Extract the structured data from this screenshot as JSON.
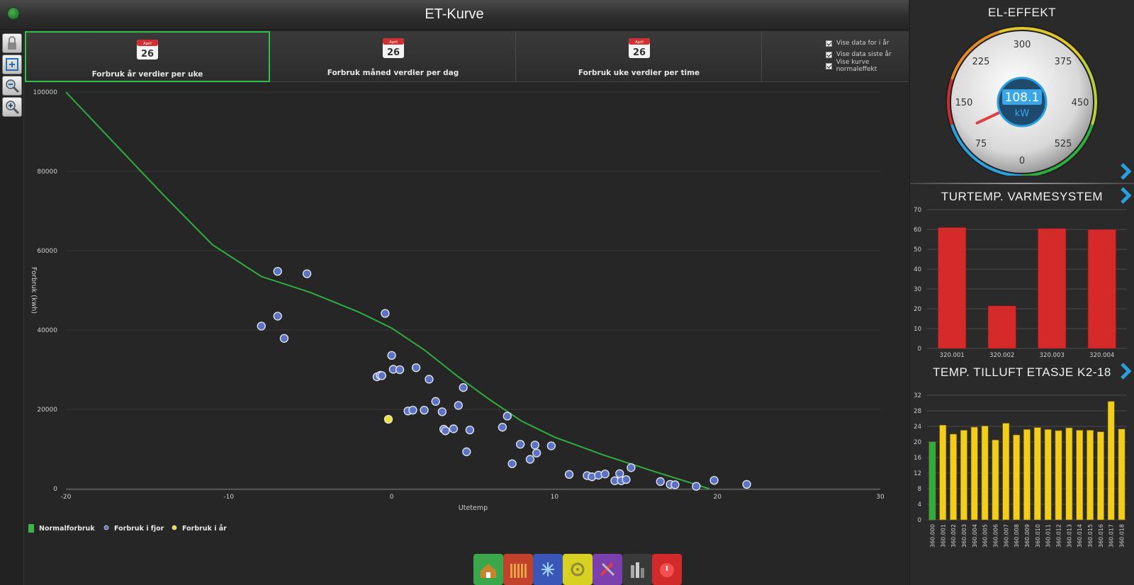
{
  "header": {
    "title": "ET-Kurve"
  },
  "toolbar": {
    "icons": [
      "lock-icon",
      "fit-screen-icon",
      "zoom-out-icon",
      "zoom-in-icon"
    ]
  },
  "tabs": [
    {
      "label": "Forbruk år verdier per uke",
      "calendar_day": "26",
      "calendar_month": "April",
      "active": true
    },
    {
      "label": "Forbruk måned verdier per dag",
      "calendar_day": "26",
      "calendar_month": "April",
      "active": false
    },
    {
      "label": "Forbruk uke verdier per time",
      "calendar_day": "26",
      "calendar_month": "April",
      "active": false
    }
  ],
  "checkboxes": [
    {
      "label": "Vise data for i år",
      "checked": true
    },
    {
      "label": "Vise data siste år",
      "checked": true
    },
    {
      "label": "Vise kurve normaleffekt",
      "checked": true
    }
  ],
  "legend": [
    {
      "label": "Normalforbruk",
      "color": "#3cb44b",
      "marker": "square"
    },
    {
      "label": "Forbruk i fjor",
      "color": "#5b73c6",
      "marker": "circle"
    },
    {
      "label": "Forbruk i år",
      "color": "#f2e033",
      "marker": "circle"
    }
  ],
  "chart_data": [
    {
      "type": "scatter",
      "xlabel": "Utetemp",
      "ylabel": "Forbruk (kwh)",
      "xlim": [
        -20,
        30
      ],
      "ylim": [
        0,
        100000
      ],
      "xticks": [
        -20,
        -10,
        0,
        10,
        20,
        30
      ],
      "yticks": [
        0,
        20000,
        40000,
        60000,
        80000,
        100000
      ],
      "grid": true,
      "series": [
        {
          "name": "Normalforbruk",
          "kind": "line",
          "color": "#2fae3f",
          "points": [
            [
              -20,
              100000
            ],
            [
              -17,
              87000
            ],
            [
              -14,
              74000
            ],
            [
              -11,
              61500
            ],
            [
              -8,
              53500
            ],
            [
              -5,
              49500
            ],
            [
              -2,
              44500
            ],
            [
              0,
              40500
            ],
            [
              2,
              35000
            ],
            [
              4,
              28500
            ],
            [
              6,
              22500
            ],
            [
              8,
              17000
            ],
            [
              10,
              13000
            ],
            [
              13,
              8500
            ],
            [
              16,
              4500
            ],
            [
              19.5,
              0
            ]
          ]
        },
        {
          "name": "Forbruk i fjor",
          "kind": "scatter",
          "color": "#5b73c6",
          "points": [
            [
              -7,
              54800
            ],
            [
              -5.2,
              54200
            ],
            [
              -8,
              41000
            ],
            [
              -7,
              43500
            ],
            [
              -6.6,
              37900
            ],
            [
              -0.4,
              44200
            ],
            [
              -0.9,
              28200
            ],
            [
              -0.7,
              28600
            ],
            [
              -0.6,
              28500
            ],
            [
              0,
              33600
            ],
            [
              0.1,
              30100
            ],
            [
              0.5,
              30000
            ],
            [
              1.5,
              30500
            ],
            [
              2.3,
              27600
            ],
            [
              1,
              19600
            ],
            [
              1.3,
              19800
            ],
            [
              2,
              19800
            ],
            [
              2.7,
              22000
            ],
            [
              3.1,
              19400
            ],
            [
              3.2,
              15000
            ],
            [
              3.3,
              14600
            ],
            [
              3.8,
              15100
            ],
            [
              4.1,
              21000
            ],
            [
              4.4,
              25500
            ],
            [
              4.6,
              9300
            ],
            [
              4.8,
              14800
            ],
            [
              6.8,
              15500
            ],
            [
              7.1,
              18300
            ],
            [
              7.4,
              6300
            ],
            [
              7.9,
              11200
            ],
            [
              8.5,
              7400
            ],
            [
              8.8,
              11000
            ],
            [
              8.9,
              9000
            ],
            [
              9.8,
              10800
            ],
            [
              10.9,
              3600
            ],
            [
              12,
              3300
            ],
            [
              12.3,
              3000
            ],
            [
              12.7,
              3400
            ],
            [
              13.1,
              3700
            ],
            [
              13.7,
              2000
            ],
            [
              14,
              3800
            ],
            [
              14.1,
              2000
            ],
            [
              14.4,
              2300
            ],
            [
              14.7,
              5300
            ],
            [
              16.5,
              1800
            ],
            [
              17.1,
              1100
            ],
            [
              17.4,
              1000
            ],
            [
              18.7,
              600
            ],
            [
              19.8,
              2100
            ],
            [
              21.8,
              1100
            ]
          ]
        },
        {
          "name": "Forbruk i år",
          "kind": "scatter",
          "color": "#f2e033",
          "points": [
            [
              -0.2,
              17500
            ]
          ]
        }
      ]
    },
    {
      "type": "bar",
      "title": "TURTEMP. VARMESYSTEM",
      "categories": [
        "320.001",
        "320.002",
        "320.003",
        "320.004"
      ],
      "values": [
        61,
        21.5,
        60.5,
        60
      ],
      "ylim": [
        0,
        70
      ],
      "yticks": [
        0,
        10,
        20,
        30,
        40,
        50,
        60,
        70
      ],
      "bar_color": "#d42a2a"
    },
    {
      "type": "bar",
      "title": "TEMP. TILLUFT ETASJE K2-18",
      "categories": [
        "360.000",
        "360.001",
        "360.002",
        "360.003",
        "360.004",
        "360.005",
        "360.006",
        "360.007",
        "360.008",
        "360.009",
        "360.010",
        "360.011",
        "360.012",
        "360.013",
        "360.014",
        "360.015",
        "360.016",
        "360.017",
        "360.018"
      ],
      "values": [
        20,
        24.3,
        22,
        23,
        23.8,
        24.1,
        20.5,
        24.8,
        21.8,
        23.2,
        23.7,
        23.2,
        22.9,
        23.6,
        23,
        23,
        22.6,
        30.4,
        23.3
      ],
      "ylim": [
        0,
        32
      ],
      "yticks": [
        0,
        4,
        8,
        12,
        16,
        20,
        24,
        28,
        32
      ],
      "bar_color": "#f2cd1a",
      "first_bar_color": "#2fae3f"
    }
  ],
  "gauge": {
    "title": "EL-EFFEKT",
    "value": "108.1",
    "value_num": 108.1,
    "unit": "kW",
    "scale_labels": [
      "0",
      "75",
      "150",
      "225",
      "300",
      "375",
      "450",
      "525"
    ],
    "min": 0,
    "max": 600
  },
  "bottom_nav": [
    "house-icon",
    "radiator-icon",
    "snowflake-icon",
    "ventilation-icon",
    "tools-icon",
    "meter-icon",
    "alarm-icon"
  ],
  "colors": {
    "accent_green": "#2fbf4a",
    "chevron_blue": "#2a9fe0"
  }
}
